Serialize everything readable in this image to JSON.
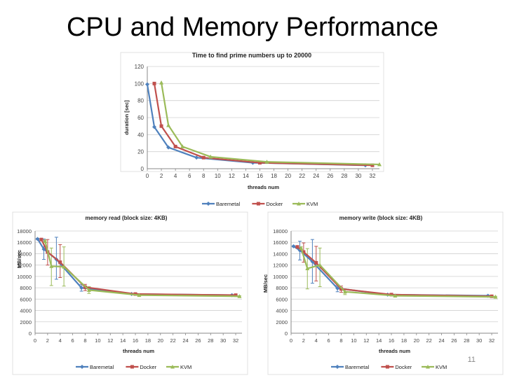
{
  "slide": {
    "title": "CPU and Memory Performance",
    "page_number": "11"
  },
  "chart_data": [
    {
      "type": "line",
      "title": "Time to find prime numbers up to 20000",
      "xlabel": "threads num",
      "ylabel": "duration [sec]",
      "xlim": [
        0,
        33
      ],
      "ylim": [
        0,
        120
      ],
      "xticks": [
        0,
        2,
        4,
        6,
        8,
        10,
        12,
        14,
        16,
        18,
        20,
        22,
        24,
        26,
        28,
        30,
        32
      ],
      "yticks": [
        0,
        20,
        40,
        60,
        80,
        100,
        120
      ],
      "x": [
        1,
        2,
        4,
        8,
        16,
        32
      ],
      "series": [
        {
          "name": "Baremetal",
          "color": "#4f81bd",
          "marker": "diamond",
          "values": [
            99,
            49,
            25,
            13,
            7,
            4
          ]
        },
        {
          "name": "Docker",
          "color": "#c0504d",
          "marker": "square",
          "values": [
            100,
            50,
            26,
            13,
            7,
            4
          ]
        },
        {
          "name": "KVM",
          "color": "#9bbb59",
          "marker": "triangle",
          "values": [
            101,
            51,
            26,
            14,
            8,
            5
          ]
        }
      ],
      "grid": true,
      "legend": "bottom"
    },
    {
      "type": "line",
      "title": "memory read (block size: 4KB)",
      "xlabel": "threads num",
      "ylabel": "MB/sec",
      "xlim": [
        0,
        33
      ],
      "ylim": [
        0,
        18000
      ],
      "xticks": [
        0,
        2,
        4,
        6,
        8,
        10,
        12,
        14,
        16,
        18,
        20,
        22,
        24,
        26,
        28,
        30,
        32
      ],
      "yticks": [
        0,
        2000,
        4000,
        6000,
        8000,
        10000,
        12000,
        14000,
        16000,
        18000
      ],
      "x": [
        1,
        2,
        4,
        8,
        16,
        32
      ],
      "series": [
        {
          "name": "Baremetal",
          "color": "#4f81bd",
          "marker": "diamond",
          "values": [
            16600,
            14800,
            13000,
            8000,
            6900,
            6700
          ],
          "error": [
            [
              16500,
              16700
            ],
            [
              13000,
              16600
            ],
            [
              9500,
              16900
            ],
            [
              7400,
              8600
            ],
            [
              6800,
              7000
            ],
            [
              6600,
              6800
            ]
          ]
        },
        {
          "name": "Docker",
          "color": "#c0504d",
          "marker": "square",
          "values": [
            16500,
            14300,
            12500,
            8100,
            6900,
            6700
          ],
          "error": [
            [
              16400,
              16600
            ],
            [
              12000,
              16500
            ],
            [
              9800,
              15600
            ],
            [
              7500,
              8600
            ],
            [
              6800,
              7000
            ],
            [
              6600,
              6800
            ]
          ]
        },
        {
          "name": "KVM",
          "color": "#9bbb59",
          "marker": "triangle",
          "values": [
            16200,
            11800,
            11700,
            7600,
            6700,
            6500
          ],
          "error": [
            [
              16000,
              16400
            ],
            [
              8400,
              15000
            ],
            [
              8300,
              15200
            ],
            [
              7000,
              8200
            ],
            [
              6600,
              6800
            ],
            [
              6400,
              6600
            ]
          ]
        }
      ],
      "grid": true,
      "legend": "bottom"
    },
    {
      "type": "line",
      "title": "memory write (block size: 4KB)",
      "xlabel": "threads num",
      "ylabel": "MB/sec",
      "xlim": [
        0,
        33
      ],
      "ylim": [
        0,
        18000
      ],
      "xticks": [
        0,
        2,
        4,
        6,
        8,
        10,
        12,
        14,
        16,
        18,
        20,
        22,
        24,
        26,
        28,
        30,
        32
      ],
      "yticks": [
        0,
        2000,
        4000,
        6000,
        8000,
        10000,
        12000,
        14000,
        16000,
        18000
      ],
      "x": [
        1,
        2,
        4,
        8,
        16,
        32
      ],
      "series": [
        {
          "name": "Baremetal",
          "color": "#4f81bd",
          "marker": "diamond",
          "values": [
            15300,
            14600,
            12600,
            7900,
            6800,
            6600
          ],
          "error": [
            [
              15200,
              15400
            ],
            [
              12900,
              16200
            ],
            [
              8800,
              16500
            ],
            [
              7300,
              8400
            ],
            [
              6700,
              6900
            ],
            [
              6500,
              6700
            ]
          ]
        },
        {
          "name": "Docker",
          "color": "#c0504d",
          "marker": "square",
          "values": [
            15200,
            14300,
            12400,
            7800,
            6800,
            6500
          ],
          "error": [
            [
              15100,
              15300
            ],
            [
              12500,
              15900
            ],
            [
              9200,
              15300
            ],
            [
              7200,
              8300
            ],
            [
              6700,
              6900
            ],
            [
              6400,
              6600
            ]
          ]
        },
        {
          "name": "KVM",
          "color": "#9bbb59",
          "marker": "triangle",
          "values": [
            15000,
            11400,
            12000,
            7300,
            6600,
            6400
          ],
          "error": [
            [
              14800,
              15200
            ],
            [
              7800,
              14900
            ],
            [
              8200,
              15000
            ],
            [
              6800,
              7800
            ],
            [
              6500,
              6700
            ],
            [
              6300,
              6500
            ]
          ]
        }
      ],
      "grid": true,
      "legend": "bottom"
    }
  ]
}
